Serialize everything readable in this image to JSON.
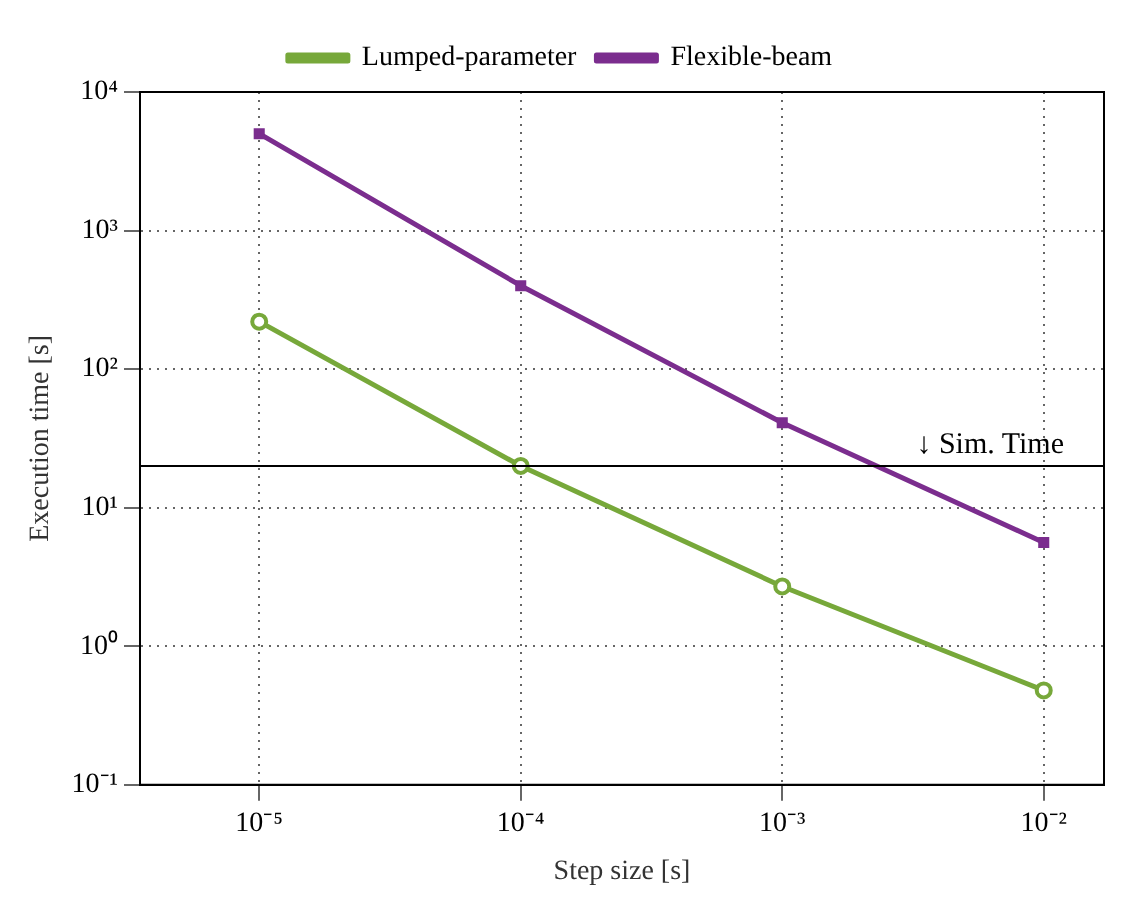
{
  "chart_data": {
    "type": "line",
    "xlabel": "Step size [s]",
    "ylabel": "Execution time [s]",
    "x": [
      1e-05,
      0.0001,
      0.001,
      0.01
    ],
    "series": [
      {
        "name": "Lumped-parameter",
        "color": "#77a83a",
        "values": [
          220,
          20,
          2.7,
          0.48
        ],
        "marker": "circle"
      },
      {
        "name": "Flexible-beam",
        "color": "#7b2d8e",
        "values": [
          5000,
          400,
          41,
          5.6
        ],
        "marker": "square"
      }
    ],
    "log": "xy",
    "xlim": [
      3.5e-06,
      0.017
    ],
    "ylim": [
      0.1,
      10000
    ],
    "xticks": [
      {
        "value": 1e-05,
        "label": "10⁻⁵"
      },
      {
        "value": 0.0001,
        "label": "10⁻⁴"
      },
      {
        "value": 0.001,
        "label": "10⁻³"
      },
      {
        "value": 0.01,
        "label": "10⁻²"
      }
    ],
    "yticks": [
      {
        "value": 0.1,
        "label": "10⁻¹"
      },
      {
        "value": 1,
        "label": "10⁰"
      },
      {
        "value": 10,
        "label": "10¹"
      },
      {
        "value": 100,
        "label": "10²"
      },
      {
        "value": 1000,
        "label": "10³"
      },
      {
        "value": 10000,
        "label": "10⁴"
      }
    ],
    "ref_lines": [
      {
        "axis": "y",
        "value": 20,
        "label": "↓ Sim. Time",
        "color": "#000000"
      }
    ],
    "grid": true,
    "legend": "top",
    "line_style": "solid"
  }
}
